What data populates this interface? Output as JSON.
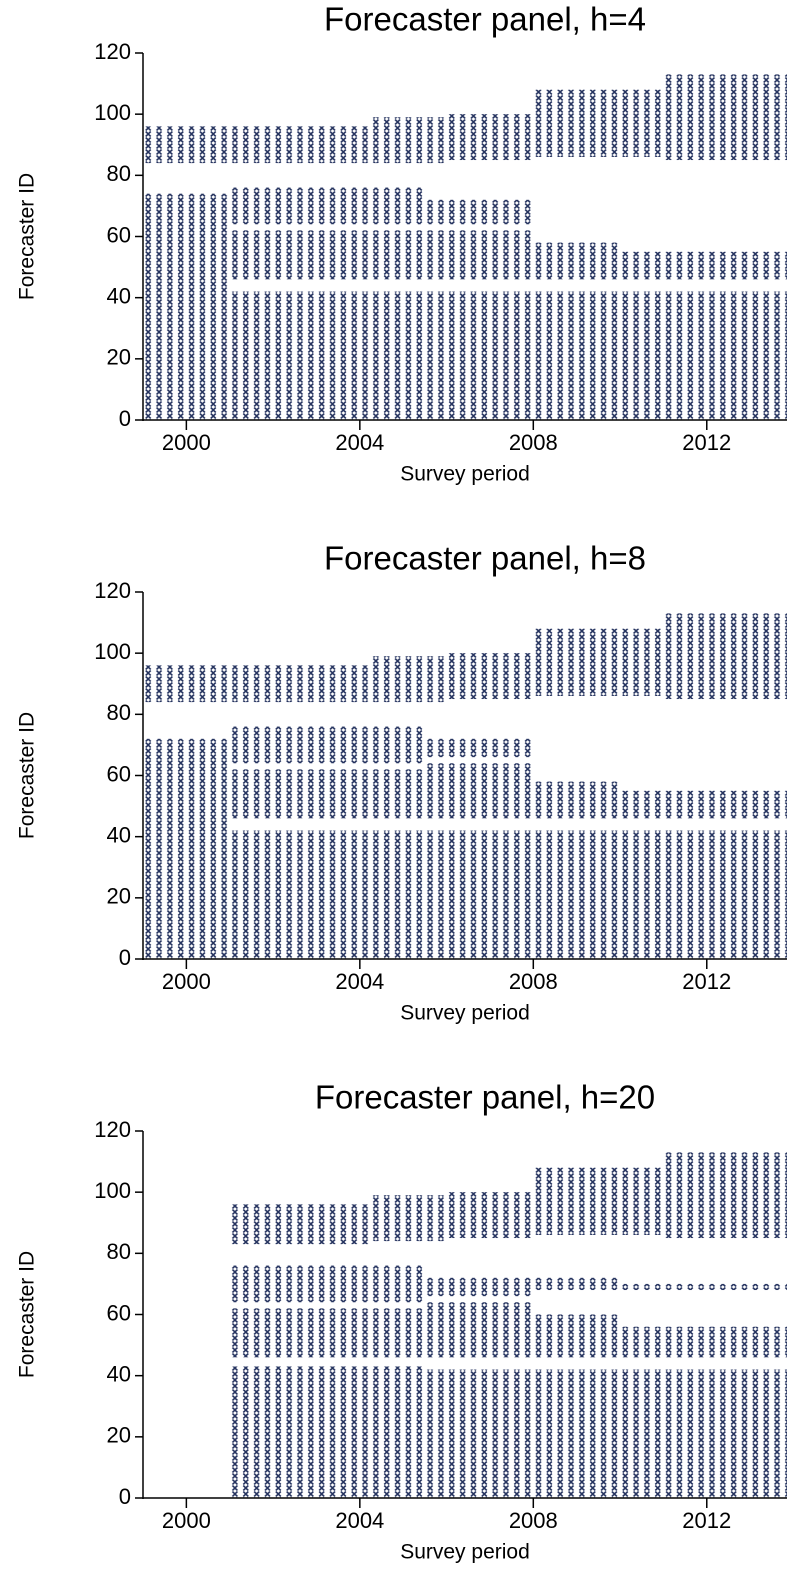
{
  "chart_data": [
    {
      "type": "scatter",
      "title": "Forecaster panel, h=4",
      "x_label": "Survey period",
      "y_label": "Forecaster ID",
      "color": "#25335f",
      "xlim": [
        1999,
        2013.85
      ],
      "ylim": [
        0,
        120
      ],
      "xticks": [
        2000,
        2004,
        2008,
        2012
      ],
      "yticks": [
        0,
        20,
        40,
        60,
        80,
        100,
        120
      ],
      "regions": [
        {
          "x": [
            1999,
            2004.25
          ],
          "y": [
            84,
            96
          ]
        },
        {
          "x": [
            2004.25,
            2006
          ],
          "y": [
            84,
            99
          ]
        },
        {
          "x": [
            2006,
            2008
          ],
          "y": [
            85,
            100
          ]
        },
        {
          "x": [
            2008,
            2011
          ],
          "y": [
            86,
            108
          ]
        },
        {
          "x": [
            2011,
            2013.85
          ],
          "y": [
            85,
            113
          ]
        },
        {
          "x": [
            1999,
            2001
          ],
          "y": [
            0,
            74
          ]
        },
        {
          "x": [
            2001,
            2005.5
          ],
          "y": [
            0,
            42
          ]
        },
        {
          "x": [
            2001,
            2005.5
          ],
          "y": [
            46,
            62
          ]
        },
        {
          "x": [
            2001,
            2005.5
          ],
          "y": [
            64,
            76
          ]
        },
        {
          "x": [
            2005.5,
            2008
          ],
          "y": [
            0,
            42
          ]
        },
        {
          "x": [
            2005.5,
            2008
          ],
          "y": [
            46,
            62
          ]
        },
        {
          "x": [
            2005.5,
            2008
          ],
          "y": [
            64,
            72
          ]
        },
        {
          "x": [
            2008,
            2010
          ],
          "y": [
            0,
            42
          ]
        },
        {
          "x": [
            2008,
            2010
          ],
          "y": [
            46,
            58
          ]
        },
        {
          "x": [
            2010,
            2013.85
          ],
          "y": [
            0,
            42
          ]
        },
        {
          "x": [
            2010,
            2013.85
          ],
          "y": [
            46,
            55
          ]
        }
      ]
    },
    {
      "type": "scatter",
      "title": "Forecaster panel, h=8",
      "x_label": "Survey period",
      "y_label": "Forecaster ID",
      "color": "#25335f",
      "xlim": [
        1999,
        2013.85
      ],
      "ylim": [
        0,
        120
      ],
      "xticks": [
        2000,
        2004,
        2008,
        2012
      ],
      "yticks": [
        0,
        20,
        40,
        60,
        80,
        100,
        120
      ],
      "regions": [
        {
          "x": [
            1999,
            2004.25
          ],
          "y": [
            84,
            96
          ]
        },
        {
          "x": [
            2004.25,
            2006
          ],
          "y": [
            84,
            99
          ]
        },
        {
          "x": [
            2006,
            2008
          ],
          "y": [
            85,
            100
          ]
        },
        {
          "x": [
            2008,
            2011
          ],
          "y": [
            86,
            108
          ]
        },
        {
          "x": [
            2011,
            2013.85
          ],
          "y": [
            85,
            113
          ]
        },
        {
          "x": [
            1999,
            2001
          ],
          "y": [
            0,
            72
          ]
        },
        {
          "x": [
            2001,
            2005.5
          ],
          "y": [
            0,
            42
          ]
        },
        {
          "x": [
            2001,
            2005.5
          ],
          "y": [
            46,
            62
          ]
        },
        {
          "x": [
            2001,
            2005.5
          ],
          "y": [
            64,
            76
          ]
        },
        {
          "x": [
            2005.5,
            2008
          ],
          "y": [
            0,
            42
          ]
        },
        {
          "x": [
            2005.5,
            2008
          ],
          "y": [
            46,
            64
          ]
        },
        {
          "x": [
            2005.5,
            2008
          ],
          "y": [
            66,
            72
          ]
        },
        {
          "x": [
            2008,
            2010
          ],
          "y": [
            0,
            42
          ]
        },
        {
          "x": [
            2008,
            2010
          ],
          "y": [
            46,
            58
          ]
        },
        {
          "x": [
            2010,
            2013.85
          ],
          "y": [
            0,
            42
          ]
        },
        {
          "x": [
            2010,
            2013.85
          ],
          "y": [
            46,
            55
          ]
        }
      ]
    },
    {
      "type": "scatter",
      "title": "Forecaster panel, h=20",
      "x_label": "Survey period",
      "y_label": "Forecaster ID",
      "color": "#25335f",
      "xlim": [
        1999,
        2013.85
      ],
      "ylim": [
        0,
        120
      ],
      "xticks": [
        2000,
        2004,
        2008,
        2012
      ],
      "yticks": [
        0,
        20,
        40,
        60,
        80,
        100,
        120
      ],
      "regions": [
        {
          "x": [
            2001,
            2004.25
          ],
          "y": [
            83,
            96
          ]
        },
        {
          "x": [
            2004.25,
            2006
          ],
          "y": [
            84,
            99
          ]
        },
        {
          "x": [
            2006,
            2008
          ],
          "y": [
            85,
            100
          ]
        },
        {
          "x": [
            2008,
            2011
          ],
          "y": [
            86,
            108
          ]
        },
        {
          "x": [
            2011,
            2013.85
          ],
          "y": [
            85,
            113
          ]
        },
        {
          "x": [
            2001,
            2005.5
          ],
          "y": [
            0,
            43
          ]
        },
        {
          "x": [
            2001,
            2005.5
          ],
          "y": [
            46,
            62
          ]
        },
        {
          "x": [
            2001,
            2005.5
          ],
          "y": [
            64,
            76
          ]
        },
        {
          "x": [
            2005.5,
            2008
          ],
          "y": [
            0,
            42
          ]
        },
        {
          "x": [
            2005.5,
            2008
          ],
          "y": [
            46,
            64
          ]
        },
        {
          "x": [
            2005.5,
            2008
          ],
          "y": [
            66,
            72
          ]
        },
        {
          "x": [
            2008,
            2010
          ],
          "y": [
            0,
            42
          ]
        },
        {
          "x": [
            2008,
            2010
          ],
          "y": [
            46,
            60
          ]
        },
        {
          "x": [
            2008,
            2010
          ],
          "y": [
            68,
            72
          ]
        },
        {
          "x": [
            2010,
            2013.85
          ],
          "y": [
            0,
            42
          ]
        },
        {
          "x": [
            2010,
            2013.85
          ],
          "y": [
            46,
            56
          ]
        },
        {
          "x": [
            2010,
            2013.85
          ],
          "y": [
            68,
            70
          ]
        }
      ]
    }
  ]
}
